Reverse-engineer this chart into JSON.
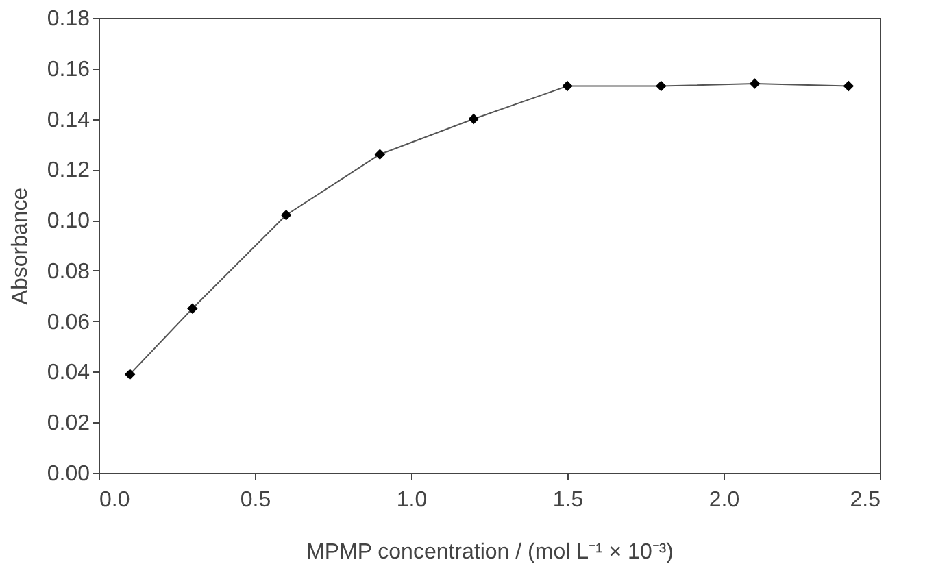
{
  "chart_data": {
    "type": "line",
    "xlabel": "MPMP concentration / (mol L⁻¹ × 10⁻³)",
    "ylabel": "Absorbance",
    "x": [
      0.1,
      0.3,
      0.6,
      0.9,
      1.2,
      1.5,
      1.8,
      2.1,
      2.4
    ],
    "series": [
      {
        "color": "#000000",
        "values": [
          0.039,
          0.065,
          0.102,
          0.126,
          0.14,
          0.153,
          0.153,
          0.154,
          0.153
        ]
      }
    ],
    "xlim": [
      0,
      2.5
    ],
    "xticks": [
      {
        "value": 0,
        "label": "0.0"
      },
      {
        "value": 0.5,
        "label": "0.5"
      },
      {
        "value": 1,
        "label": "1.0"
      },
      {
        "value": 1.5,
        "label": "1.5"
      },
      {
        "value": 2,
        "label": "2.0"
      },
      {
        "value": 2.5,
        "label": "2.5"
      }
    ],
    "ylim": [
      0,
      0.18
    ],
    "yticks": [
      {
        "value": 0,
        "label": "0.00"
      },
      {
        "value": 0.02,
        "label": "0.02"
      },
      {
        "value": 0.04,
        "label": "0.04"
      },
      {
        "value": 0.06,
        "label": "0.06"
      },
      {
        "value": 0.08,
        "label": "0.08"
      },
      {
        "value": 0.1,
        "label": "0.10"
      },
      {
        "value": 0.12,
        "label": "0.12"
      },
      {
        "value": 0.14,
        "label": "0.14"
      },
      {
        "value": 0.16,
        "label": "0.16"
      },
      {
        "value": 0.18,
        "label": "0.18"
      }
    ],
    "marker": "diamond",
    "line_style": "solid",
    "grid": false
  }
}
